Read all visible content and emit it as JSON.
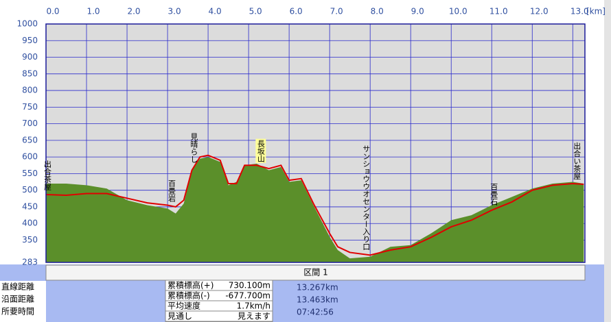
{
  "chart_data": {
    "type": "elevation-profile",
    "x_unit": "[km]",
    "xlim": [
      0,
      13.3
    ],
    "xticks": [
      {
        "value": 0,
        "label": "0.0"
      },
      {
        "value": 1,
        "label": "1.0"
      },
      {
        "value": 2,
        "label": "2.0"
      },
      {
        "value": 3,
        "label": "3.0"
      },
      {
        "value": 4,
        "label": "4.0"
      },
      {
        "value": 5,
        "label": "5.0"
      },
      {
        "value": 6,
        "label": "6.0"
      },
      {
        "value": 7,
        "label": "7.0"
      },
      {
        "value": 8,
        "label": "8.0"
      },
      {
        "value": 9,
        "label": "9.0"
      },
      {
        "value": 10,
        "label": "10.0"
      },
      {
        "value": 11,
        "label": "11.0"
      },
      {
        "value": 12,
        "label": "12.0"
      },
      {
        "value": 13,
        "label": "13.0"
      }
    ],
    "ylim": [
      283,
      1000
    ],
    "yticks": [
      283,
      350,
      400,
      450,
      500,
      550,
      600,
      650,
      700,
      750,
      800,
      850,
      900,
      950,
      1000
    ],
    "grid": true,
    "x": [
      0,
      0.5,
      1.0,
      1.5,
      2.0,
      2.5,
      3.0,
      3.2,
      3.4,
      3.6,
      3.8,
      4.0,
      4.3,
      4.5,
      4.7,
      4.9,
      5.2,
      5.5,
      5.8,
      6.0,
      6.3,
      6.6,
      7.0,
      7.2,
      7.5,
      8.0,
      8.5,
      9.0,
      9.5,
      10.0,
      10.5,
      11.0,
      11.5,
      12.0,
      12.5,
      13.0,
      13.27
    ],
    "series": [
      {
        "color": "#e00000",
        "values": [
          487,
          485,
          490,
          490,
          476,
          462,
          455,
          450,
          470,
          560,
          600,
          605,
          590,
          520,
          520,
          575,
          575,
          565,
          575,
          530,
          535,
          460,
          370,
          330,
          313,
          305,
          320,
          330,
          358,
          390,
          410,
          440,
          465,
          500,
          515,
          520,
          518
        ]
      },
      {
        "color": "#5b8f2a",
        "values": [
          520,
          520,
          515,
          505,
          470,
          455,
          445,
          430,
          460,
          560,
          595,
          600,
          585,
          515,
          525,
          575,
          580,
          560,
          570,
          525,
          530,
          455,
          360,
          320,
          295,
          300,
          330,
          335,
          370,
          410,
          425,
          455,
          480,
          505,
          520,
          525,
          520
        ]
      }
    ],
    "annotations": [
      {
        "text": "出合茶屋",
        "x": 0.0
      },
      {
        "text": "百畳岩",
        "x": 3.1
      },
      {
        "text": "見晴らし",
        "x": 3.65
      },
      {
        "text": "長坂山",
        "x": 5.3,
        "background": "#ffff99"
      },
      {
        "text": "サンショウウオセンター入り口",
        "x": 7.9
      },
      {
        "text": "百畳石",
        "x": 11.05
      },
      {
        "text": "出合い茶屋",
        "x": 13.1
      }
    ]
  },
  "panel": {
    "header": "区間 1",
    "left_labels": [
      "直線距離",
      "沿面距離",
      "所要時間"
    ],
    "table": [
      [
        "累積標高(+)",
        "730.100m"
      ],
      [
        "累積標高(-)",
        "-677.700m"
      ],
      [
        "平均速度",
        "1.7km/h"
      ],
      [
        "見通し",
        "見えます"
      ]
    ],
    "right_values": [
      "13.267km",
      "13.463km",
      "07:42:56"
    ]
  }
}
